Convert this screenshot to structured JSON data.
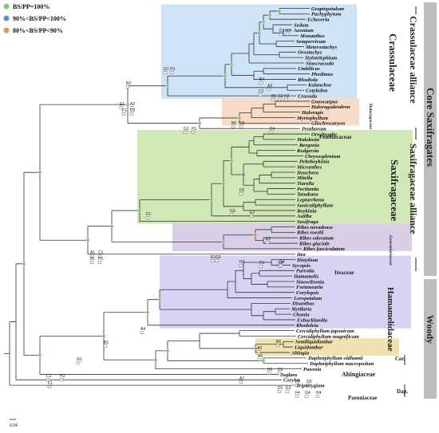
{
  "legend": [
    {
      "text": "BS/PP=100%",
      "color": "#7ccf7a"
    },
    {
      "text": "90%<BS/PP<100%",
      "color": "#5b8fd6"
    },
    {
      "text": "80%<BS/PP<90%",
      "color": "#e8925b"
    }
  ],
  "scale_label": "0.04",
  "colors": {
    "crassulaceae": "#cfe3f6",
    "haloragaceae": "#f6dcc6",
    "saxifragaceae": "#cfe8b6",
    "grossulariaceae": "#d9cfe6",
    "hamamelidaceae": "#d8d2f3",
    "altingiaceae": "#efe2ae",
    "branch": "#333333",
    "node_green": "#7ccf7a",
    "node_blue": "#5b8fd6",
    "node_orange": "#e8925b",
    "right_bar": "#bdbdbd"
  },
  "taxa": [
    "Graptopetalum",
    "Pachyphytum",
    "Echeveria",
    "Sedum",
    "Aeonium",
    "Monanthes",
    "Sempervivum",
    "Meterostachys",
    "Orostachys",
    "Hylotelephium",
    "Sinocrassula",
    "Umbilicus",
    "Phedimus",
    "Rhodiola",
    "Kalanchoe",
    "Cotyledon",
    "Crassula",
    "Gonocarpus",
    "Haloragodendron",
    "Haloragis",
    "Myriophyllum",
    "Glischrocaryon",
    "Penthorum",
    "Oresitrophe",
    "Mukdenia",
    "Bergenia",
    "Rodgersia",
    "Chrysosplenium",
    "Peltoboykinia",
    "Micranthes",
    "Heuchera",
    "Mitella",
    "Tiarella",
    "Pectiantia",
    "Tanakaea",
    "Leptarrhena",
    "Saniculiphyllum",
    "Boykinia",
    "Astilbe",
    "Saxifraga",
    "Ribes nevadense",
    "Ribes roezlii",
    "Ribes odoratum",
    "Ribes glaciale",
    "Ribes fasciculatum",
    "Itea",
    "Distylium",
    "Sycopsis",
    "Parrotia",
    "Hamamelis",
    "Sinowilsonia",
    "Fortunearia",
    "Corylopsis",
    "Loropetalum",
    "Disanthus",
    "Mytilaria",
    "Chunia",
    "Exbucklandia",
    "Rhodoleia",
    "Cercidiphyllum japonicum",
    "Cercidiphyllum magnificum",
    "Semiliquidambar",
    "Liquidambar",
    "Altingia",
    "Daphniphyllum oldhamii",
    "Daphniphyllum macropodum",
    "Paeonia",
    "Juglans",
    "Corylus",
    "Tripterygium"
  ],
  "families": {
    "crassulaceae": "Crassulaceae",
    "haloragaceae": "Haloragaceae",
    "penthoraceae": "Penthoraceae",
    "saxifragaceae": "Saxifragaceae",
    "grossulariaceae": "Grossulariaceae",
    "iteaceae": "Iteaceae",
    "hamamelidaceae": "Hamamelidaceae",
    "cer": "Cer.",
    "altingiaceae": "Altingiaceae",
    "dap": "Dap.",
    "paeoniaceae": "Paeoniaceae"
  },
  "groups": {
    "crassulaceae_alliance": "Crassulaceae alliance",
    "saxifragaceae_alliance": "Saxifragaceae alliance",
    "core_saxifragates": "Core Saxifragates",
    "woody": "Woody"
  },
  "node_labels": [
    "G1",
    "H1",
    "B2",
    "E1",
    "A2",
    "F1",
    "D2",
    "D1",
    "B3",
    "B4",
    "D3",
    "A3",
    "C2",
    "B5",
    "C3",
    "H2",
    "B6",
    "D4",
    "G1",
    "H1",
    "E2",
    "A1",
    "C1",
    "B1",
    "H1",
    "E1",
    "G2",
    "F2",
    "G3",
    "D2",
    "E2",
    "F3",
    "C3",
    "G4",
    "H2",
    "B1",
    "G1",
    "C1",
    "F1",
    "H3",
    "A4",
    "A5",
    "B5",
    "A6",
    "B6",
    "D5",
    "A7",
    "D1",
    "E3",
    "F4",
    "G4",
    "H4",
    "F5",
    "G5"
  ]
}
